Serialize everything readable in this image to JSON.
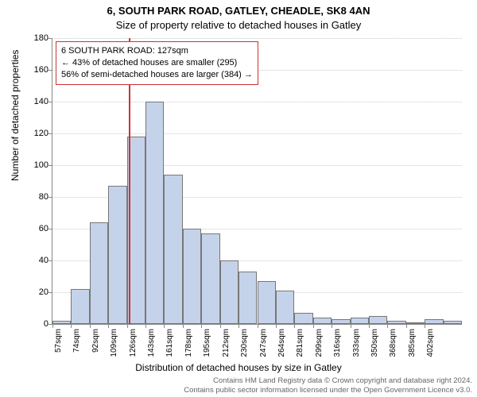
{
  "chart": {
    "type": "histogram",
    "title_main": "6, SOUTH PARK ROAD, GATLEY, CHEADLE, SK8 4AN",
    "title_sub": "Size of property relative to detached houses in Gatley",
    "title_fontsize": 13,
    "y_axis_title": "Number of detached properties",
    "x_axis_title": "Distribution of detached houses by size in Gatley",
    "axis_title_fontsize": 12,
    "tick_fontsize": 11,
    "background_color": "#ffffff",
    "bar_fill": "#c5d3ea",
    "bar_border": "#777777",
    "grid_color": "#cccccc",
    "axis_color": "#888888",
    "ylim": [
      0,
      180
    ],
    "ytick_step": 20,
    "x_categories": [
      "57sqm",
      "74sqm",
      "92sqm",
      "109sqm",
      "126sqm",
      "143sqm",
      "161sqm",
      "178sqm",
      "195sqm",
      "212sqm",
      "230sqm",
      "247sqm",
      "264sqm",
      "281sqm",
      "299sqm",
      "316sqm",
      "333sqm",
      "350sqm",
      "368sqm",
      "385sqm",
      "402sqm"
    ],
    "values": [
      2,
      22,
      64,
      87,
      118,
      140,
      94,
      60,
      57,
      40,
      33,
      27,
      21,
      7,
      4,
      3,
      4,
      5,
      2,
      0,
      3,
      2
    ],
    "bar_width_ratio": 1.0,
    "marker": {
      "position_index": 4.1,
      "line_color": "#cc3333",
      "box_border": "#cc3333",
      "box_bg": "#ffffff",
      "lines": [
        "6 SOUTH PARK ROAD: 127sqm",
        "← 43% of detached houses are smaller (295)",
        "56% of semi-detached houses are larger (384) →"
      ]
    }
  },
  "footer": {
    "line1": "Contains HM Land Registry data © Crown copyright and database right 2024.",
    "line2": "Contains public sector information licensed under the Open Government Licence v3.0.",
    "color": "#666666",
    "fontsize": 9.5
  }
}
